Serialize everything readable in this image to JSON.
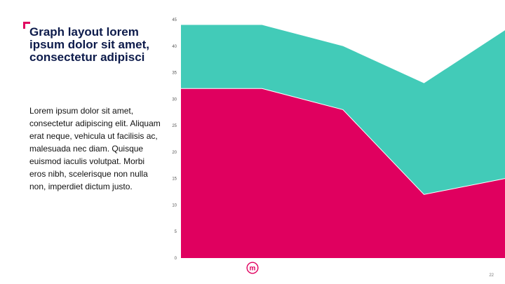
{
  "slide": {
    "title": "Graph layout lorem ipsum dolor sit amet, consectetur adipisci",
    "body": "Lorem ipsum dolor sit amet, consectetur adipiscing elit. Aliquam erat neque, vehicula ut facilisis ac, malesuada nec diam. Quisque euismod iaculis volutpat. Morbi eros nibh, scelerisque non nulla non, imperdiet dictum justo.",
    "page_number": "22",
    "logo_letter": "m",
    "accent_color": "#e0005f",
    "title_color": "#0d1b4b",
    "icons": [
      "corner-bracket-icon",
      "logo-icon"
    ]
  },
  "chart_data": {
    "type": "area",
    "stacked": true,
    "x": [
      1,
      2,
      3,
      4,
      5
    ],
    "series": [
      {
        "values": [
          32,
          32,
          28,
          12,
          15
        ],
        "color": "#e0005f"
      },
      {
        "values": [
          12,
          12,
          12,
          21,
          28
        ],
        "color": "#42cbb8"
      }
    ],
    "yticks": [
      0,
      5,
      10,
      15,
      20,
      25,
      30,
      35,
      40,
      45
    ],
    "ylim": [
      0,
      45
    ],
    "grid": false,
    "legend": "none",
    "xlabel": "",
    "ylabel": ""
  }
}
